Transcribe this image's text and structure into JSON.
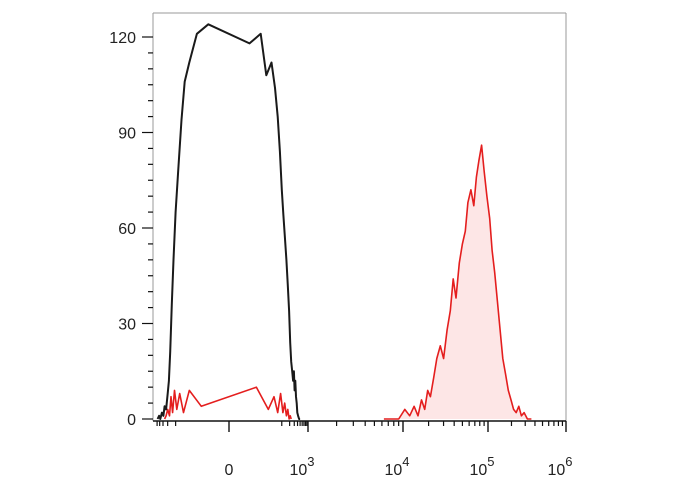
{
  "chart_data": {
    "type": "area",
    "title": "",
    "xlabel": "",
    "ylabel": "",
    "x_scale": "biexponential",
    "ylim": [
      0,
      120
    ],
    "y_ticks": [
      {
        "value": 0,
        "label": "0"
      },
      {
        "value": 30,
        "label": "30"
      },
      {
        "value": 60,
        "label": "60"
      },
      {
        "value": 90,
        "label": "90"
      },
      {
        "value": 120,
        "label": "120"
      }
    ],
    "x_ticks": [
      {
        "value": 0,
        "base": "0",
        "exp": ""
      },
      {
        "value": 1000,
        "base": "10",
        "exp": "3"
      },
      {
        "value": 10000,
        "base": "10",
        "exp": "4"
      },
      {
        "value": 100000,
        "base": "10",
        "exp": "5"
      },
      {
        "value": 1000000,
        "base": "10",
        "exp": "6"
      }
    ],
    "series": [
      {
        "color": "#e41e1e",
        "fill": "#fde6e6",
        "style": "filled",
        "x": [
          6300,
          7500,
          9000,
          10500,
          12000,
          13500,
          15000,
          16500,
          18000,
          19500,
          21000,
          23000,
          25000,
          27500,
          30000,
          33000,
          36000,
          39000,
          42000,
          46000,
          50000,
          54000,
          58000,
          63000,
          68000,
          73000,
          78000,
          84000,
          90000,
          97000,
          105000,
          113000,
          122000,
          132000,
          143000,
          155000,
          168000,
          182000,
          197000,
          213000,
          230000,
          248000,
          268000,
          290000,
          320000,
          360000
        ],
        "y": [
          0,
          0,
          0,
          3,
          1,
          4,
          1,
          6,
          3,
          9,
          7,
          13,
          19,
          23,
          19,
          28,
          34,
          44,
          38,
          49,
          55,
          59,
          68,
          72,
          67,
          76,
          81,
          86,
          78,
          70,
          63,
          53,
          46,
          37,
          28,
          19,
          14,
          9,
          6,
          3,
          2,
          4,
          1,
          2,
          0,
          0
        ]
      },
      {
        "color": "#e41e1e",
        "fill": "none",
        "style": "line",
        "x": [
          -260,
          -230,
          -200,
          -170,
          -150,
          -130,
          -110,
          -90,
          -70,
          -50,
          -30,
          -10,
          10,
          30,
          50,
          70,
          90,
          110,
          130,
          150,
          170,
          190,
          210,
          230
        ],
        "y": [
          0,
          1,
          3,
          1,
          7,
          2,
          9,
          3,
          8,
          2,
          9,
          4,
          10,
          3,
          7,
          2,
          8,
          2,
          5,
          1,
          3,
          0,
          1,
          0
        ]
      },
      {
        "color": "#1a1a1a",
        "fill": "none",
        "style": "line",
        "x": [
          -480,
          -420,
          -380,
          -330,
          -290,
          -260,
          -230,
          -200,
          -180,
          -160,
          -140,
          -120,
          -100,
          -80,
          -60,
          -45,
          -30,
          -15,
          -5,
          5,
          15,
          25,
          40,
          55,
          70,
          85,
          100,
          115,
          130,
          150,
          170,
          190,
          210,
          230,
          250,
          270,
          290,
          310,
          330,
          350,
          370,
          390,
          420,
          460,
          500
        ],
        "y": [
          0,
          1,
          0,
          2,
          1,
          4,
          3,
          8,
          12,
          21,
          36,
          50,
          65,
          78,
          94,
          106,
          112,
          121,
          124,
          118,
          121,
          108,
          112,
          104,
          95,
          84,
          72,
          64,
          58,
          50,
          42,
          34,
          24,
          18,
          15,
          12,
          15,
          9,
          12,
          7,
          5,
          2,
          1,
          0,
          0
        ]
      }
    ]
  }
}
